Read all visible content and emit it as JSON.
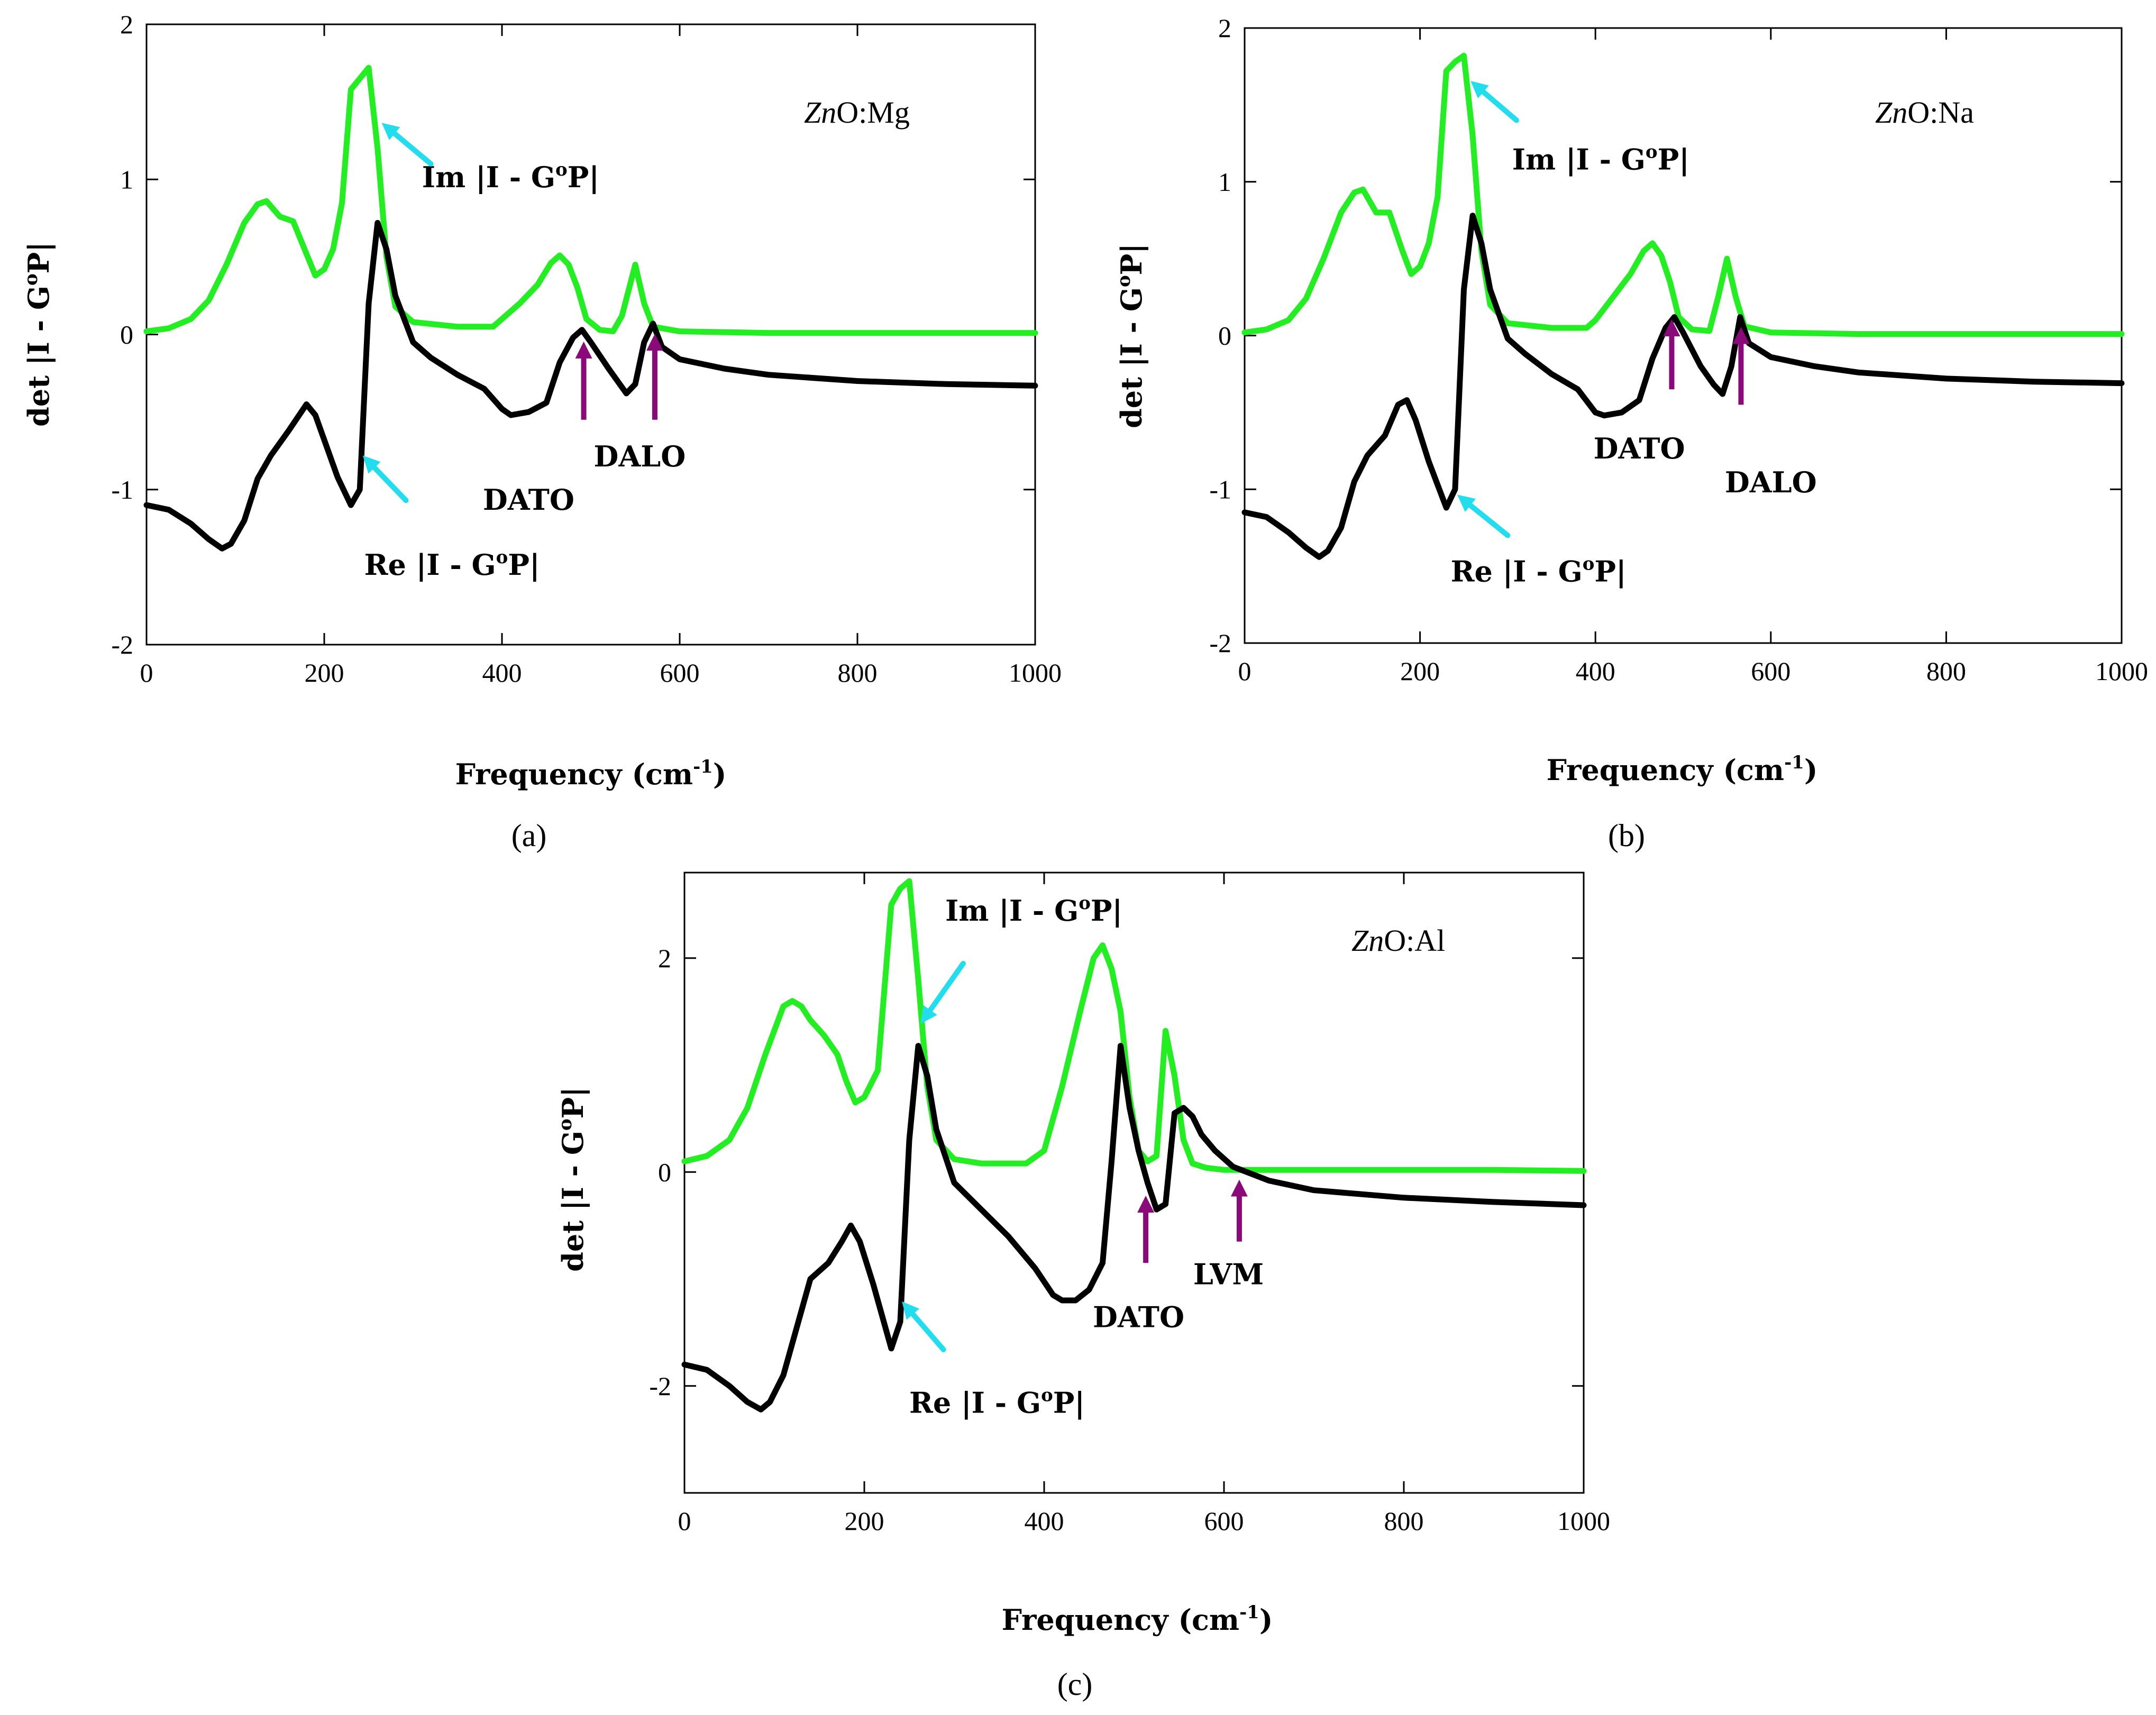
{
  "figure": {
    "colors": {
      "im": "#22ee22",
      "re": "#000000",
      "arrow_cyan": "#22ddee",
      "arrow_purple": "#8b0a7a"
    }
  },
  "chart_data": [
    {
      "type": "line",
      "panel": "(a)",
      "caption": "(a)",
      "sample": "ZnO:Mg",
      "sample_parts": {
        "italic": "Zn",
        "rest": "O:Mg"
      },
      "xlabel_main": "Frequency (cm",
      "xlabel_sup": "-1",
      "xlabel_end": ")",
      "ylabel_main": "det |I - G",
      "ylabel_sup": "o",
      "ylabel_end": "P|",
      "xlim": [
        0,
        1000
      ],
      "ylim": [
        -2,
        2
      ],
      "xticks": [
        0,
        200,
        400,
        600,
        800,
        1000
      ],
      "xtick_labels": [
        "0",
        "200",
        "400",
        "600",
        "800",
        "1000"
      ],
      "yticks": [
        -2,
        -1,
        0,
        1,
        2
      ],
      "ytick_labels": [
        "-2",
        "-1",
        "0",
        "1",
        "2"
      ],
      "series": [
        {
          "name": "Im |I - GoP|",
          "label_main": "Im |I - G",
          "label_sup": "o",
          "label_end": "P|",
          "x": [
            0,
            25,
            50,
            70,
            90,
            110,
            125,
            135,
            150,
            165,
            180,
            190,
            200,
            210,
            220,
            230,
            240,
            250,
            260,
            270,
            280,
            300,
            350,
            390,
            400,
            420,
            440,
            455,
            465,
            475,
            485,
            495,
            510,
            525,
            535,
            550,
            560,
            570,
            600,
            700,
            800,
            900,
            1000
          ],
          "y": [
            0.02,
            0.04,
            0.1,
            0.22,
            0.45,
            0.72,
            0.84,
            0.86,
            0.76,
            0.73,
            0.52,
            0.38,
            0.42,
            0.55,
            0.85,
            1.58,
            1.65,
            1.72,
            1.2,
            0.5,
            0.18,
            0.08,
            0.05,
            0.05,
            0.1,
            0.2,
            0.32,
            0.46,
            0.51,
            0.45,
            0.3,
            0.1,
            0.03,
            0.02,
            0.12,
            0.45,
            0.2,
            0.05,
            0.02,
            0.01,
            0.01,
            0.01,
            0.01
          ]
        },
        {
          "name": "Re |I - GoP|",
          "label_main": "Re |I - G",
          "label_sup": "o",
          "label_end": "P|",
          "x": [
            0,
            25,
            50,
            70,
            85,
            95,
            110,
            125,
            140,
            160,
            180,
            190,
            200,
            215,
            230,
            240,
            250,
            260,
            270,
            280,
            300,
            320,
            350,
            380,
            400,
            410,
            430,
            450,
            465,
            480,
            490,
            500,
            520,
            540,
            550,
            560,
            570,
            580,
            600,
            650,
            700,
            800,
            900,
            1000
          ],
          "y": [
            -1.1,
            -1.13,
            -1.22,
            -1.32,
            -1.38,
            -1.35,
            -1.2,
            -0.93,
            -0.78,
            -0.62,
            -0.45,
            -0.52,
            -0.68,
            -0.92,
            -1.1,
            -1.0,
            0.2,
            0.72,
            0.55,
            0.25,
            -0.05,
            -0.15,
            -0.26,
            -0.35,
            -0.48,
            -0.52,
            -0.5,
            -0.44,
            -0.18,
            -0.02,
            0.03,
            -0.05,
            -0.22,
            -0.38,
            -0.32,
            -0.05,
            0.07,
            -0.08,
            -0.16,
            -0.22,
            -0.26,
            -0.3,
            -0.32,
            -0.33
          ]
        }
      ],
      "annotations": [
        {
          "text": "DATO",
          "x": 430,
          "y": -1.13
        },
        {
          "text": "DALO",
          "x": 555,
          "y": -0.85
        }
      ],
      "label_positions": {
        "im": {
          "x": 310,
          "y": 0.95
        },
        "re": {
          "x": 245,
          "y": -1.55
        }
      },
      "cyan_arrows": [
        {
          "tail": [
            320,
            1.1
          ],
          "head": [
            272,
            1.33
          ]
        },
        {
          "tail": [
            292,
            -1.07
          ],
          "head": [
            250,
            -0.82
          ]
        }
      ],
      "purple_arrows": [
        {
          "tail": [
            492,
            -0.55
          ],
          "head": [
            492,
            -0.1
          ]
        },
        {
          "tail": [
            572,
            -0.55
          ],
          "head": [
            572,
            -0.05
          ]
        }
      ]
    },
    {
      "type": "line",
      "panel": "(b)",
      "caption": "(b)",
      "sample": "ZnO:Na",
      "sample_parts": {
        "italic": "Zn",
        "rest": "O:Na"
      },
      "xlabel_main": "Frequency (cm",
      "xlabel_sup": "-1",
      "xlabel_end": ")",
      "ylabel_main": "det |I - G",
      "ylabel_sup": "o",
      "ylabel_end": "P|",
      "xlim": [
        0,
        1000
      ],
      "ylim": [
        -2,
        2
      ],
      "xticks": [
        0,
        200,
        400,
        600,
        800,
        1000
      ],
      "xtick_labels": [
        "0",
        "200",
        "400",
        "600",
        "800",
        "1000"
      ],
      "yticks": [
        -2,
        -1,
        0,
        1,
        2
      ],
      "ytick_labels": [
        "-2",
        "-1",
        "0",
        "1",
        "2"
      ],
      "series": [
        {
          "name": "Im |I - GoP|",
          "label_main": "Im |I - G",
          "label_sup": "o",
          "label_end": "P|",
          "x": [
            0,
            25,
            50,
            70,
            90,
            110,
            125,
            135,
            150,
            165,
            180,
            190,
            200,
            210,
            220,
            230,
            240,
            250,
            260,
            270,
            280,
            300,
            350,
            390,
            400,
            420,
            440,
            455,
            465,
            475,
            485,
            495,
            510,
            530,
            540,
            550,
            560,
            570,
            600,
            700,
            800,
            900,
            1000
          ],
          "y": [
            0.02,
            0.04,
            0.1,
            0.24,
            0.5,
            0.8,
            0.93,
            0.95,
            0.8,
            0.8,
            0.55,
            0.4,
            0.45,
            0.6,
            0.9,
            1.72,
            1.78,
            1.82,
            1.3,
            0.55,
            0.2,
            0.08,
            0.05,
            0.05,
            0.1,
            0.25,
            0.4,
            0.55,
            0.6,
            0.52,
            0.35,
            0.12,
            0.04,
            0.03,
            0.25,
            0.5,
            0.25,
            0.06,
            0.02,
            0.01,
            0.01,
            0.01,
            0.01
          ]
        },
        {
          "name": "Re |I - GoP|",
          "label_main": "Re |I - G",
          "label_sup": "o",
          "label_end": "P|",
          "x": [
            0,
            25,
            50,
            70,
            85,
            95,
            110,
            125,
            140,
            160,
            175,
            185,
            195,
            210,
            230,
            240,
            250,
            260,
            270,
            280,
            300,
            320,
            350,
            380,
            400,
            410,
            430,
            450,
            465,
            480,
            490,
            500,
            520,
            535,
            545,
            555,
            565,
            575,
            600,
            650,
            700,
            800,
            900,
            1000
          ],
          "y": [
            -1.15,
            -1.18,
            -1.28,
            -1.38,
            -1.44,
            -1.4,
            -1.25,
            -0.95,
            -0.78,
            -0.65,
            -0.45,
            -0.42,
            -0.55,
            -0.82,
            -1.12,
            -1.0,
            0.3,
            0.78,
            0.6,
            0.3,
            -0.02,
            -0.12,
            -0.25,
            -0.35,
            -0.5,
            -0.52,
            -0.5,
            -0.42,
            -0.15,
            0.05,
            0.12,
            0.02,
            -0.2,
            -0.32,
            -0.38,
            -0.2,
            0.12,
            -0.05,
            -0.14,
            -0.2,
            -0.24,
            -0.28,
            -0.3,
            -0.31
          ]
        }
      ],
      "annotations": [
        {
          "text": "DATO",
          "x": 450,
          "y": -0.8
        },
        {
          "text": "DALO",
          "x": 600,
          "y": -1.02
        }
      ],
      "label_positions": {
        "im": {
          "x": 305,
          "y": 1.08
        },
        "re": {
          "x": 235,
          "y": -1.6
        }
      },
      "cyan_arrows": [
        {
          "tail": [
            310,
            1.4
          ],
          "head": [
            265,
            1.62
          ]
        },
        {
          "tail": [
            300,
            -1.3
          ],
          "head": [
            250,
            -1.07
          ]
        }
      ],
      "purple_arrows": [
        {
          "tail": [
            487,
            -0.35
          ],
          "head": [
            487,
            0.05
          ]
        },
        {
          "tail": [
            566,
            -0.45
          ],
          "head": [
            566,
            0.0
          ]
        }
      ]
    },
    {
      "type": "line",
      "panel": "(c)",
      "caption": "(c)",
      "sample": "ZnO:Al",
      "sample_parts": {
        "italic": "Zn",
        "rest": "O:Al"
      },
      "xlabel_main": "Frequency (cm",
      "xlabel_sup": "-1",
      "xlabel_end": ")",
      "ylabel_main": "det |I - G",
      "ylabel_sup": "o",
      "ylabel_end": "P|",
      "xlim": [
        0,
        1000
      ],
      "ylim": [
        -3,
        2.8
      ],
      "xticks": [
        0,
        200,
        400,
        600,
        800,
        1000
      ],
      "xtick_labels": [
        "0",
        "200",
        "400",
        "600",
        "800",
        "1000"
      ],
      "yticks": [
        -2,
        0,
        2
      ],
      "ytick_labels": [
        "-2",
        "0",
        "2"
      ],
      "series": [
        {
          "name": "Im |I - GoP|",
          "label_main": "Im |I - G",
          "label_sup": "o",
          "label_end": "P|",
          "x": [
            0,
            25,
            50,
            70,
            90,
            110,
            120,
            130,
            140,
            155,
            170,
            180,
            190,
            200,
            215,
            230,
            240,
            250,
            260,
            270,
            280,
            300,
            330,
            380,
            400,
            420,
            440,
            455,
            465,
            475,
            485,
            495,
            505,
            515,
            525,
            535,
            545,
            555,
            565,
            580,
            600,
            700,
            800,
            900,
            1000
          ],
          "y": [
            0.1,
            0.15,
            0.3,
            0.6,
            1.1,
            1.55,
            1.6,
            1.55,
            1.42,
            1.28,
            1.1,
            0.85,
            0.65,
            0.7,
            0.95,
            2.5,
            2.65,
            2.72,
            1.8,
            0.8,
            0.3,
            0.12,
            0.08,
            0.08,
            0.2,
            0.8,
            1.5,
            2.0,
            2.12,
            1.9,
            1.5,
            0.7,
            0.2,
            0.1,
            0.15,
            1.32,
            0.9,
            0.3,
            0.08,
            0.04,
            0.02,
            0.02,
            0.02,
            0.02,
            0.01
          ]
        },
        {
          "name": "Re |I - GoP|",
          "label_main": "Re |I - G",
          "label_sup": "o",
          "label_end": "P|",
          "x": [
            0,
            25,
            50,
            70,
            85,
            95,
            110,
            125,
            140,
            160,
            175,
            185,
            195,
            210,
            230,
            240,
            250,
            260,
            270,
            280,
            300,
            330,
            360,
            390,
            410,
            420,
            435,
            450,
            465,
            475,
            485,
            495,
            505,
            515,
            525,
            535,
            545,
            555,
            565,
            575,
            590,
            610,
            650,
            700,
            800,
            900,
            1000
          ],
          "y": [
            -1.8,
            -1.85,
            -2.0,
            -2.15,
            -2.22,
            -2.15,
            -1.9,
            -1.45,
            -1.0,
            -0.85,
            -0.65,
            -0.5,
            -0.65,
            -1.05,
            -1.65,
            -1.4,
            0.3,
            1.18,
            0.9,
            0.4,
            -0.1,
            -0.35,
            -0.6,
            -0.9,
            -1.15,
            -1.2,
            -1.2,
            -1.1,
            -0.85,
            0.1,
            1.18,
            0.6,
            0.2,
            -0.1,
            -0.35,
            -0.3,
            0.55,
            0.6,
            0.52,
            0.35,
            0.2,
            0.05,
            -0.08,
            -0.17,
            -0.24,
            -0.28,
            -0.31
          ]
        }
      ],
      "annotations": [
        {
          "text": "DATO",
          "x": 505,
          "y": -1.45
        },
        {
          "text": "LVM",
          "x": 605,
          "y": -1.05
        }
      ],
      "label_positions": {
        "im": {
          "x": 290,
          "y": 2.35
        },
        "re": {
          "x": 250,
          "y": -2.25
        }
      },
      "cyan_arrows": [
        {
          "tail": [
            310,
            1.95
          ],
          "head": [
            268,
            1.45
          ]
        },
        {
          "tail": [
            288,
            -1.66
          ],
          "head": [
            248,
            -1.27
          ]
        }
      ],
      "purple_arrows": [
        {
          "tail": [
            513,
            -0.85
          ],
          "head": [
            513,
            -0.3
          ]
        },
        {
          "tail": [
            617,
            -0.65
          ],
          "head": [
            617,
            -0.15
          ]
        }
      ]
    }
  ]
}
